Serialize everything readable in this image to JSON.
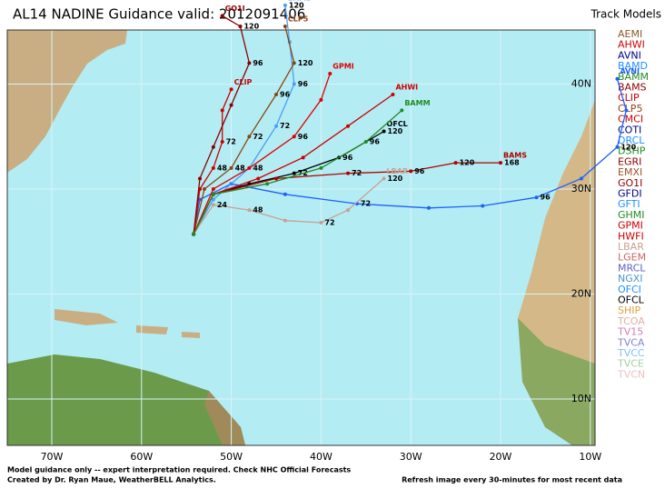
{
  "title": "AL14 NADINE Guidance valid: 2012091406",
  "legend_title": "Track Models",
  "models": [
    {
      "name": "AEMI",
      "color": "#8b5a2b"
    },
    {
      "name": "AHWI",
      "color": "#cc0000"
    },
    {
      "name": "AVNI",
      "color": "#000080"
    },
    {
      "name": "BAMD",
      "color": "#1e90ff"
    },
    {
      "name": "BAMM",
      "color": "#228b22"
    },
    {
      "name": "BAMS",
      "color": "#8b0000"
    },
    {
      "name": "CLIP",
      "color": "#cc0000"
    },
    {
      "name": "CLP5",
      "color": "#8b4513"
    },
    {
      "name": "CMCI",
      "color": "#cc0000"
    },
    {
      "name": "COTI",
      "color": "#000080"
    },
    {
      "name": "DRCL",
      "color": "#1e90ff"
    },
    {
      "name": "DSHP",
      "color": "#228b22"
    },
    {
      "name": "EGRI",
      "color": "#8b0000"
    },
    {
      "name": "EMXI",
      "color": "#a0522d"
    },
    {
      "name": "GO1I",
      "color": "#8b0000"
    },
    {
      "name": "GFDI",
      "color": "#000080"
    },
    {
      "name": "GFTI",
      "color": "#1e90ff"
    },
    {
      "name": "GHMI",
      "color": "#228b22"
    },
    {
      "name": "GPMI",
      "color": "#cc0000"
    },
    {
      "name": "HWFI",
      "color": "#cc0000"
    },
    {
      "name": "LBAR",
      "color": "#c8a090"
    },
    {
      "name": "LGEM",
      "color": "#cc6666"
    },
    {
      "name": "MRCL",
      "color": "#6060c0"
    },
    {
      "name": "NGXI",
      "color": "#4f94cd"
    },
    {
      "name": "OFCI",
      "color": "#1e90ff"
    },
    {
      "name": "OFCL",
      "color": "#000000"
    },
    {
      "name": "SHIP",
      "color": "#e0a040"
    },
    {
      "name": "TCOA",
      "color": "#e0b0a0"
    },
    {
      "name": "TV15",
      "color": "#d080b0"
    },
    {
      "name": "TVCA",
      "color": "#8080e0"
    },
    {
      "name": "TVCC",
      "color": "#80c0ff"
    },
    {
      "name": "TVCE",
      "color": "#a0d0a0"
    },
    {
      "name": "TVCN",
      "color": "#f0c0c0"
    }
  ],
  "lon_ticks": [
    {
      "value": -70,
      "label": "70W"
    },
    {
      "value": -60,
      "label": "60W"
    },
    {
      "value": -50,
      "label": "50W"
    },
    {
      "value": -40,
      "label": "40W"
    },
    {
      "value": -30,
      "label": "30W"
    },
    {
      "value": -20,
      "label": "20W"
    },
    {
      "value": -10,
      "label": "10W"
    }
  ],
  "lat_ticks": [
    {
      "value": 40,
      "label": "40N"
    },
    {
      "value": 30,
      "label": "30N"
    },
    {
      "value": 20,
      "label": "20N"
    },
    {
      "value": 10,
      "label": "10N"
    }
  ],
  "tracks": [
    {
      "model": "AVNI",
      "color": "#1e60ff",
      "lon": [
        -54.2,
        -53.5,
        -50,
        -44,
        -36,
        -28,
        -22,
        -16,
        -11,
        -7,
        -6,
        -7
      ],
      "lat": [
        25.7,
        29,
        30.5,
        29.5,
        28.6,
        28.2,
        28.4,
        29.2,
        31,
        34,
        37.5,
        40.5
      ],
      "labels": [
        null,
        null,
        null,
        null,
        "72",
        null,
        null,
        "96",
        null,
        "120",
        null,
        null
      ]
    },
    {
      "model": "BAMD",
      "color": "#4aa0f0",
      "lon": [
        -54.2,
        -52,
        -48,
        -45,
        -43,
        -43.5,
        -44
      ],
      "lat": [
        25.7,
        29,
        32,
        36,
        40,
        44,
        47.5
      ],
      "labels": [
        null,
        null,
        "48",
        "72",
        "96",
        null,
        "120"
      ]
    },
    {
      "model": "CLIP",
      "color": "#cc0000",
      "lon": [
        -54.2,
        -53.5,
        -52,
        -51,
        -51,
        -50
      ],
      "lat": [
        25.7,
        30,
        32,
        34.5,
        37.5,
        39.5
      ],
      "labels": [
        null,
        null,
        "48",
        "72",
        null,
        null
      ]
    },
    {
      "model": "CLP5",
      "color": "#8b4513",
      "lon": [
        -54.2,
        -53,
        -50,
        -48,
        -45,
        -43,
        -44
      ],
      "lat": [
        25.7,
        30,
        32,
        35,
        39,
        42,
        45.5
      ],
      "labels": [
        null,
        null,
        "48",
        "72",
        "96",
        "120",
        null
      ]
    },
    {
      "model": "GO1I",
      "color": "#8b0000",
      "lon": [
        -54.2,
        -53.5,
        -52,
        -50,
        -48,
        -49,
        -51
      ],
      "lat": [
        25.7,
        31,
        34,
        38,
        42,
        45.5,
        46.5
      ],
      "labels": [
        null,
        null,
        null,
        null,
        "96",
        "120",
        null
      ]
    },
    {
      "model": "OFCL",
      "color": "#000000",
      "lon": [
        -54.2,
        -52,
        -48,
        -43,
        -38,
        -33
      ],
      "lat": [
        25.7,
        29.5,
        30.5,
        31.5,
        33,
        35.5
      ],
      "labels": [
        null,
        null,
        null,
        "72",
        "96",
        "120"
      ]
    },
    {
      "model": "BAMS",
      "color": "#b00000",
      "lon": [
        -54.2,
        -52,
        -45,
        -37,
        -30,
        -25,
        -20
      ],
      "lat": [
        25.7,
        29.5,
        31,
        31.5,
        31.7,
        32.5,
        32.5
      ],
      "labels": [
        null,
        null,
        null,
        "72",
        "96",
        "120",
        "168"
      ]
    },
    {
      "model": "LBAR",
      "color": "#c8a090",
      "lon": [
        -54.2,
        -52,
        -48,
        -44,
        -40,
        -37,
        -33
      ],
      "lat": [
        25.7,
        28.5,
        28,
        27,
        26.8,
        28,
        31
      ],
      "labels": [
        null,
        "24",
        "48",
        null,
        "72",
        null,
        "120"
      ]
    },
    {
      "model": "GPMI",
      "color": "#dd0000",
      "lon": [
        -54.2,
        -52,
        -48,
        -43,
        -40,
        -39
      ],
      "lat": [
        25.7,
        30,
        32,
        35,
        38.5,
        41
      ],
      "labels": [
        null,
        null,
        null,
        "96",
        null,
        null
      ]
    },
    {
      "model": "AHWI",
      "color": "#cc0000",
      "lon": [
        -54.2,
        -52,
        -47,
        -42,
        -37,
        -32
      ],
      "lat": [
        25.7,
        29.5,
        31,
        33,
        36,
        39
      ],
      "labels": [
        null,
        null,
        null,
        null,
        null,
        null
      ]
    },
    {
      "model": "BAMM",
      "color": "#228b22",
      "lon": [
        -54.2,
        -52,
        -46,
        -40,
        -35,
        -31
      ],
      "lat": [
        25.7,
        29.5,
        30.5,
        32,
        34.5,
        37.5
      ],
      "labels": [
        null,
        null,
        null,
        null,
        "96",
        null
      ]
    }
  ],
  "footer_left_1": "Model guidance only -- expert interpretation required.  Check NHC Official Forecasts",
  "footer_left_2": "Created by Dr. Ryan Maue, WeatherBELL Analytics.",
  "footer_right": "Refresh image every 30-minutes for most recent data"
}
